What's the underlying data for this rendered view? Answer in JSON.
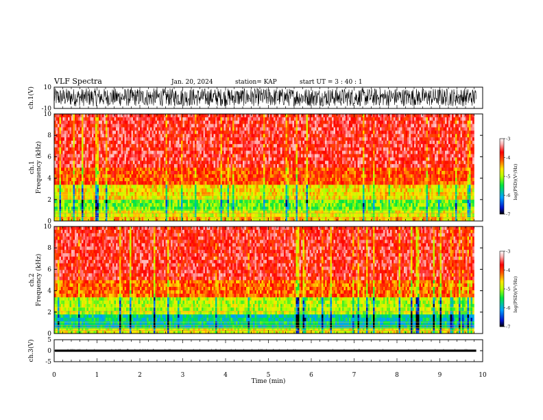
{
  "header": {
    "title": "VLF Spectra",
    "date": "Jan. 20, 2024",
    "station": "station= KAP",
    "start": "start  UT =   3  : 40 : 1"
  },
  "colors": {
    "spectrum": [
      "#000000",
      "#0010c8",
      "#00a0ff",
      "#00e640",
      "#b4ff00",
      "#ffe600",
      "#ff5000",
      "#ff0000",
      "#ffb4b4",
      "#ffffff"
    ],
    "waveform": "#000000"
  },
  "chart_data": [
    {
      "type": "line",
      "panel": "ch1-waveform",
      "ylabel": "ch.1(V)",
      "ylim": [
        -10,
        10
      ],
      "yticks": [
        "10",
        "-10"
      ],
      "xlim": [
        0,
        10
      ],
      "description_of_values": "dense noise waveform spanning most of the range",
      "envelope": [
        -8,
        9
      ]
    },
    {
      "type": "heatmap",
      "panel": "ch1-spectrogram",
      "ylabel": "ch.1\nFrequency (kHz)",
      "ylabel_lines": [
        "ch.1",
        "Frequency (kHz)"
      ],
      "ylim": [
        0,
        10
      ],
      "yticks": [
        "0",
        "2",
        "4",
        "6",
        "8",
        "10"
      ],
      "xlim": [
        0,
        9.8
      ],
      "colorbar": {
        "label": "log(PSD)(V²/Hz)",
        "ticks": [
          "-3",
          "-4",
          "-5",
          "-6",
          "-7"
        ],
        "range": [
          -7,
          -3
        ]
      },
      "bands": [
        {
          "f": [
            0.0,
            0.4
          ],
          "level": 0.62
        },
        {
          "f": [
            0.4,
            1.0
          ],
          "level": 0.55
        },
        {
          "f": [
            1.0,
            2.0
          ],
          "level": 0.45
        },
        {
          "f": [
            2.0,
            3.4
          ],
          "level": 0.58
        },
        {
          "f": [
            3.4,
            5.0
          ],
          "level": 0.74
        },
        {
          "f": [
            5.0,
            10.0
          ],
          "level": 0.84
        }
      ]
    },
    {
      "type": "heatmap",
      "panel": "ch2-spectrogram",
      "ylabel": "ch.2\nFrequency (kHz)",
      "ylabel_lines": [
        "ch.2",
        "Frequency (kHz)"
      ],
      "ylim": [
        0,
        10
      ],
      "yticks": [
        "0",
        "2",
        "4",
        "6",
        "8",
        "10"
      ],
      "xlim": [
        0,
        9.8
      ],
      "colorbar": {
        "label": "log(PSD)(V²/Hz)",
        "ticks": [
          "-3",
          "-4",
          "-5",
          "-6",
          "-7"
        ],
        "range": [
          -7,
          -3
        ]
      },
      "bands": [
        {
          "f": [
            0.0,
            0.5
          ],
          "level": 0.55
        },
        {
          "f": [
            0.5,
            1.8
          ],
          "level": 0.32
        },
        {
          "f": [
            1.8,
            3.4
          ],
          "level": 0.52
        },
        {
          "f": [
            3.4,
            5.0
          ],
          "level": 0.72
        },
        {
          "f": [
            5.0,
            10.0
          ],
          "level": 0.83
        }
      ]
    },
    {
      "type": "line",
      "panel": "ch3-waveform",
      "ylabel": "ch.3(V)",
      "ylim": [
        -5,
        5
      ],
      "yticks": [
        "5",
        "0",
        "-5"
      ],
      "xlim": [
        0,
        10
      ],
      "envelope": [
        -0.5,
        0.5
      ]
    }
  ],
  "xaxis": {
    "label": "Time  (min)",
    "ticks": [
      "0",
      "1",
      "2",
      "3",
      "4",
      "5",
      "6",
      "7",
      "8",
      "9",
      "10"
    ],
    "range": [
      0,
      10
    ]
  }
}
